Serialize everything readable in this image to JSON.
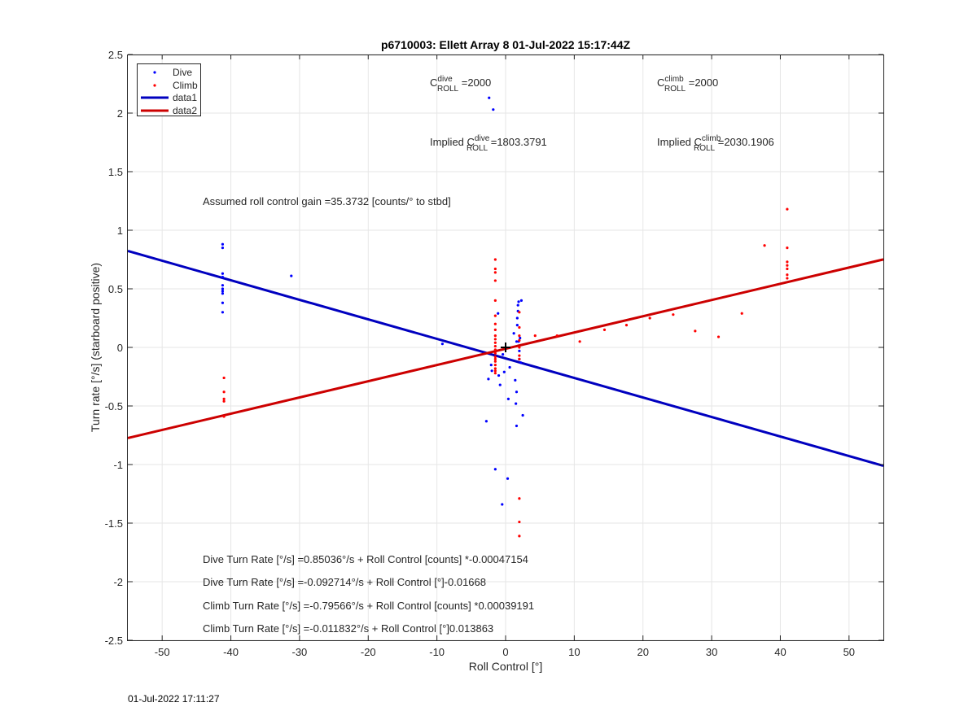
{
  "figure": {
    "timestamp": "01-Jul-2022 17:11:27"
  },
  "chart_data": {
    "type": "scatter",
    "title": "p6710003: Ellett Array 8 01-Jul-2022 15:17:44Z",
    "xlabel": "Roll Control [°]",
    "ylabel": "Turn rate [°/s] (starboard positive)",
    "xlim": [
      -55,
      55
    ],
    "ylim": [
      -2.5,
      2.5
    ],
    "xticks": [
      -50,
      -40,
      -30,
      -20,
      -10,
      0,
      10,
      20,
      30,
      40,
      50
    ],
    "yticks": [
      -2.5,
      -2,
      -1.5,
      -1,
      -0.5,
      0,
      0.5,
      1,
      1.5,
      2,
      2.5
    ],
    "xtick_labels": [
      "-50",
      "-40",
      "-30",
      "-20",
      "-10",
      "0",
      "10",
      "20",
      "30",
      "40",
      "50"
    ],
    "ytick_labels": [
      "-2.5",
      "-2",
      "-1.5",
      "-1",
      "-0.5",
      "0",
      "0.5",
      "1",
      "1.5",
      "2",
      "2.5"
    ],
    "grid": true,
    "legend_position": "top-left",
    "series": [
      {
        "name": "Dive",
        "kind": "points",
        "color": "#0000ff",
        "points": [
          [
            -41.2,
            0.88
          ],
          [
            -41.2,
            0.85
          ],
          [
            -41.2,
            0.63
          ],
          [
            -41.2,
            0.6
          ],
          [
            -41.2,
            0.53
          ],
          [
            -41.2,
            0.5
          ],
          [
            -41.2,
            0.48
          ],
          [
            -41.2,
            0.46
          ],
          [
            -41.2,
            0.38
          ],
          [
            -41.2,
            0.3
          ],
          [
            -31.2,
            0.61
          ],
          [
            -9.2,
            0.03
          ],
          [
            -2.8,
            -0.63
          ],
          [
            -2.5,
            -0.27
          ],
          [
            -2.4,
            2.13
          ],
          [
            -2.1,
            -0.15
          ],
          [
            -2.0,
            -0.2
          ],
          [
            -1.8,
            2.03
          ],
          [
            -1.5,
            -1.04
          ],
          [
            -1.1,
            0.29
          ],
          [
            -1.0,
            -0.24
          ],
          [
            -0.8,
            -0.32
          ],
          [
            -0.5,
            -1.34
          ],
          [
            -0.4,
            -0.06
          ],
          [
            -0.2,
            -0.21
          ],
          [
            0.3,
            -1.12
          ],
          [
            0.4,
            -0.44
          ],
          [
            0.6,
            -0.17
          ],
          [
            1.2,
            0.12
          ],
          [
            1.4,
            -0.28
          ],
          [
            1.5,
            -0.48
          ],
          [
            1.6,
            -0.67
          ],
          [
            1.6,
            -0.38
          ],
          [
            1.6,
            0.05
          ],
          [
            1.7,
            0.19
          ],
          [
            1.7,
            0.25
          ],
          [
            1.8,
            0.31
          ],
          [
            1.8,
            0.36
          ],
          [
            1.9,
            0.39
          ],
          [
            1.9,
            0.05
          ],
          [
            2.0,
            -0.03
          ],
          [
            2.0,
            -0.1
          ],
          [
            2.1,
            0.08
          ],
          [
            2.2,
            -0.13
          ],
          [
            2.3,
            0.4
          ],
          [
            2.5,
            -0.58
          ]
        ]
      },
      {
        "name": "Climb",
        "kind": "points",
        "color": "#ff0000",
        "points": [
          [
            -41.0,
            -0.26
          ],
          [
            -41.0,
            -0.38
          ],
          [
            -41.0,
            -0.44
          ],
          [
            -41.0,
            -0.46
          ],
          [
            -41.0,
            -0.59
          ],
          [
            -1.5,
            0.75
          ],
          [
            -1.5,
            0.67
          ],
          [
            -1.5,
            0.64
          ],
          [
            -1.5,
            0.57
          ],
          [
            -1.5,
            0.4
          ],
          [
            -1.5,
            0.27
          ],
          [
            -1.5,
            0.2
          ],
          [
            -1.5,
            0.15
          ],
          [
            -1.5,
            0.1
          ],
          [
            -1.5,
            0.07
          ],
          [
            -1.5,
            0.04
          ],
          [
            -1.5,
            0.01
          ],
          [
            -1.5,
            -0.02
          ],
          [
            -1.5,
            -0.05
          ],
          [
            -1.5,
            -0.08
          ],
          [
            -1.5,
            -0.1
          ],
          [
            -1.5,
            -0.12
          ],
          [
            -1.5,
            -0.15
          ],
          [
            -1.5,
            -0.18
          ],
          [
            -1.5,
            -0.2
          ],
          [
            -1.5,
            -0.22
          ],
          [
            2.0,
            0.3
          ],
          [
            2.0,
            0.17
          ],
          [
            2.0,
            0.1
          ],
          [
            2.0,
            0.06
          ],
          [
            2.0,
            0.0
          ],
          [
            2.0,
            -0.07
          ],
          [
            2.0,
            -0.1
          ],
          [
            2.0,
            -1.29
          ],
          [
            2.0,
            -1.49
          ],
          [
            2.0,
            -1.61
          ],
          [
            4.3,
            0.1
          ],
          [
            7.5,
            0.1
          ],
          [
            10.8,
            0.05
          ],
          [
            14.4,
            0.15
          ],
          [
            17.6,
            0.19
          ],
          [
            21.0,
            0.25
          ],
          [
            24.4,
            0.28
          ],
          [
            27.6,
            0.14
          ],
          [
            31.0,
            0.09
          ],
          [
            34.4,
            0.29
          ],
          [
            37.7,
            0.87
          ],
          [
            41.0,
            1.18
          ],
          [
            41.0,
            0.85
          ],
          [
            41.0,
            0.73
          ],
          [
            41.0,
            0.7
          ],
          [
            41.0,
            0.67
          ],
          [
            41.0,
            0.62
          ],
          [
            41.0,
            0.59
          ]
        ]
      },
      {
        "name": "data1",
        "kind": "line",
        "color": "#0000bf",
        "points": [
          [
            -55,
            0.823
          ],
          [
            55,
            -1.011
          ]
        ]
      },
      {
        "name": "data2",
        "kind": "line",
        "color": "#cc0000",
        "points": [
          [
            -55,
            -0.774
          ],
          [
            55,
            0.751
          ]
        ]
      }
    ],
    "marker": {
      "x": 0,
      "y": 0,
      "symbol": "+"
    },
    "annotations": {
      "c_dive_label": "C",
      "c_dive_sup": "dive",
      "c_dive_sub": "ROLL",
      "c_dive_val": " =2000",
      "c_climb_label": "C",
      "c_climb_sup": "climb",
      "c_climb_sub": "ROLL",
      "c_climb_val": " =2000",
      "implied_dive_label": "Implied C",
      "implied_dive_sup": "dive",
      "implied_dive_sub": "ROLL",
      "implied_dive_val": " =1803.3791",
      "implied_climb_label": "Implied C",
      "implied_climb_sup": "climb",
      "implied_climb_sub": "ROLL",
      "implied_climb_val": " =2030.1906",
      "gain": "Assumed roll control gain =35.3732 [counts/° to stbd]",
      "eq1": "Dive Turn Rate [°/s] =0.85036°/s + Roll Control [counts] *-0.00047154",
      "eq2": "Dive Turn Rate [°/s] =-0.092714°/s + Roll Control [°]-0.01668",
      "eq3": "Climb Turn Rate [°/s] =-0.79566°/s + Roll Control [counts] *0.00039191",
      "eq4": "Climb Turn Rate [°/s] =-0.011832°/s + Roll Control [°]0.013863"
    }
  }
}
